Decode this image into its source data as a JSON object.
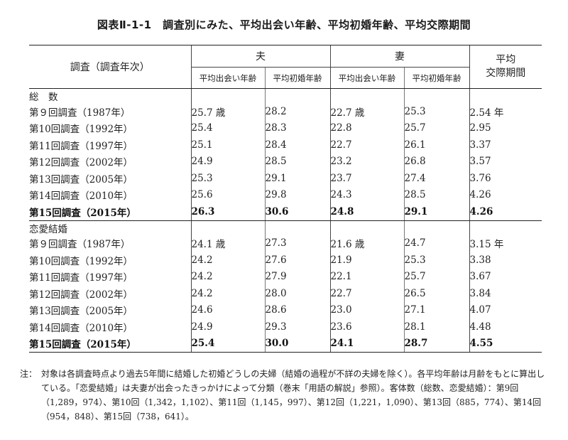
{
  "title": "図表Ⅱ-1-1　調査別にみた、平均出会い年齢、平均初婚年齢、平均交際期間",
  "table": {
    "header": {
      "survey_col": "調査（調査年次）",
      "husband": "夫",
      "wife": "妻",
      "avg_period": "平均\n交際期間",
      "sub_meet": "平均出会い年齢",
      "sub_marry": "平均初婚年齢"
    },
    "sections": [
      {
        "label": "総　数",
        "rows": [
          {
            "survey": "第９回調査（1987年）",
            "h_meet": "25.7 歳",
            "h_marry": "28.2",
            "w_meet": "22.7 歳",
            "w_marry": "25.3",
            "period": "2.54 年",
            "bold": false
          },
          {
            "survey": "第10回調査（1992年）",
            "h_meet": "25.4",
            "h_marry": "28.3",
            "w_meet": "22.8",
            "w_marry": "25.7",
            "period": "2.95",
            "bold": false
          },
          {
            "survey": "第11回調査（1997年）",
            "h_meet": "25.1",
            "h_marry": "28.4",
            "w_meet": "22.7",
            "w_marry": "26.1",
            "period": "3.37",
            "bold": false
          },
          {
            "survey": "第12回調査（2002年）",
            "h_meet": "24.9",
            "h_marry": "28.5",
            "w_meet": "23.2",
            "w_marry": "26.8",
            "period": "3.57",
            "bold": false
          },
          {
            "survey": "第13回調査（2005年）",
            "h_meet": "25.3",
            "h_marry": "29.1",
            "w_meet": "23.7",
            "w_marry": "27.4",
            "period": "3.76",
            "bold": false
          },
          {
            "survey": "第14回調査（2010年）",
            "h_meet": "25.6",
            "h_marry": "29.8",
            "w_meet": "24.3",
            "w_marry": "28.5",
            "period": "4.26",
            "bold": false
          },
          {
            "survey": "第15回調査（2015年）",
            "h_meet": "26.3",
            "h_marry": "30.6",
            "w_meet": "24.8",
            "w_marry": "29.1",
            "period": "4.26",
            "bold": true
          }
        ]
      },
      {
        "label": "恋愛結婚",
        "rows": [
          {
            "survey": "第９回調査（1987年）",
            "h_meet": "24.1 歳",
            "h_marry": "27.3",
            "w_meet": "21.6 歳",
            "w_marry": "24.7",
            "period": "3.15 年",
            "bold": false
          },
          {
            "survey": "第10回調査（1992年）",
            "h_meet": "24.2",
            "h_marry": "27.6",
            "w_meet": "21.9",
            "w_marry": "25.3",
            "period": "3.38",
            "bold": false
          },
          {
            "survey": "第11回調査（1997年）",
            "h_meet": "24.2",
            "h_marry": "27.9",
            "w_meet": "22.1",
            "w_marry": "25.7",
            "period": "3.67",
            "bold": false
          },
          {
            "survey": "第12回調査（2002年）",
            "h_meet": "24.2",
            "h_marry": "28.0",
            "w_meet": "22.7",
            "w_marry": "26.5",
            "period": "3.84",
            "bold": false
          },
          {
            "survey": "第13回調査（2005年）",
            "h_meet": "24.6",
            "h_marry": "28.6",
            "w_meet": "23.0",
            "w_marry": "27.1",
            "period": "4.07",
            "bold": false
          },
          {
            "survey": "第14回調査（2010年）",
            "h_meet": "24.9",
            "h_marry": "29.3",
            "w_meet": "23.6",
            "w_marry": "28.1",
            "period": "4.48",
            "bold": false
          },
          {
            "survey": "第15回調査（2015年）",
            "h_meet": "25.4",
            "h_marry": "30.0",
            "w_meet": "24.1",
            "w_marry": "28.7",
            "period": "4.55",
            "bold": true
          }
        ]
      }
    ]
  },
  "note": {
    "prefix": "注：",
    "text": "対象は各調査時点より過去5年間に結婚した初婚どうしの夫婦（結婚の過程が不詳の夫婦を除く）。各平均年齢は月齢をもとに算出している。「恋愛結婚」は夫妻が出会ったきっかけによって分類（巻末「用語の解説」参照）。客体数（総数、恋愛結婚）：第9回（1,289，974）、第10回（1,342，1,102）、第11回（1,145，997）、第12回（1,221，1,090）、第13回（885，774）、第14回（954，848）、第15回（738，641）。"
  }
}
